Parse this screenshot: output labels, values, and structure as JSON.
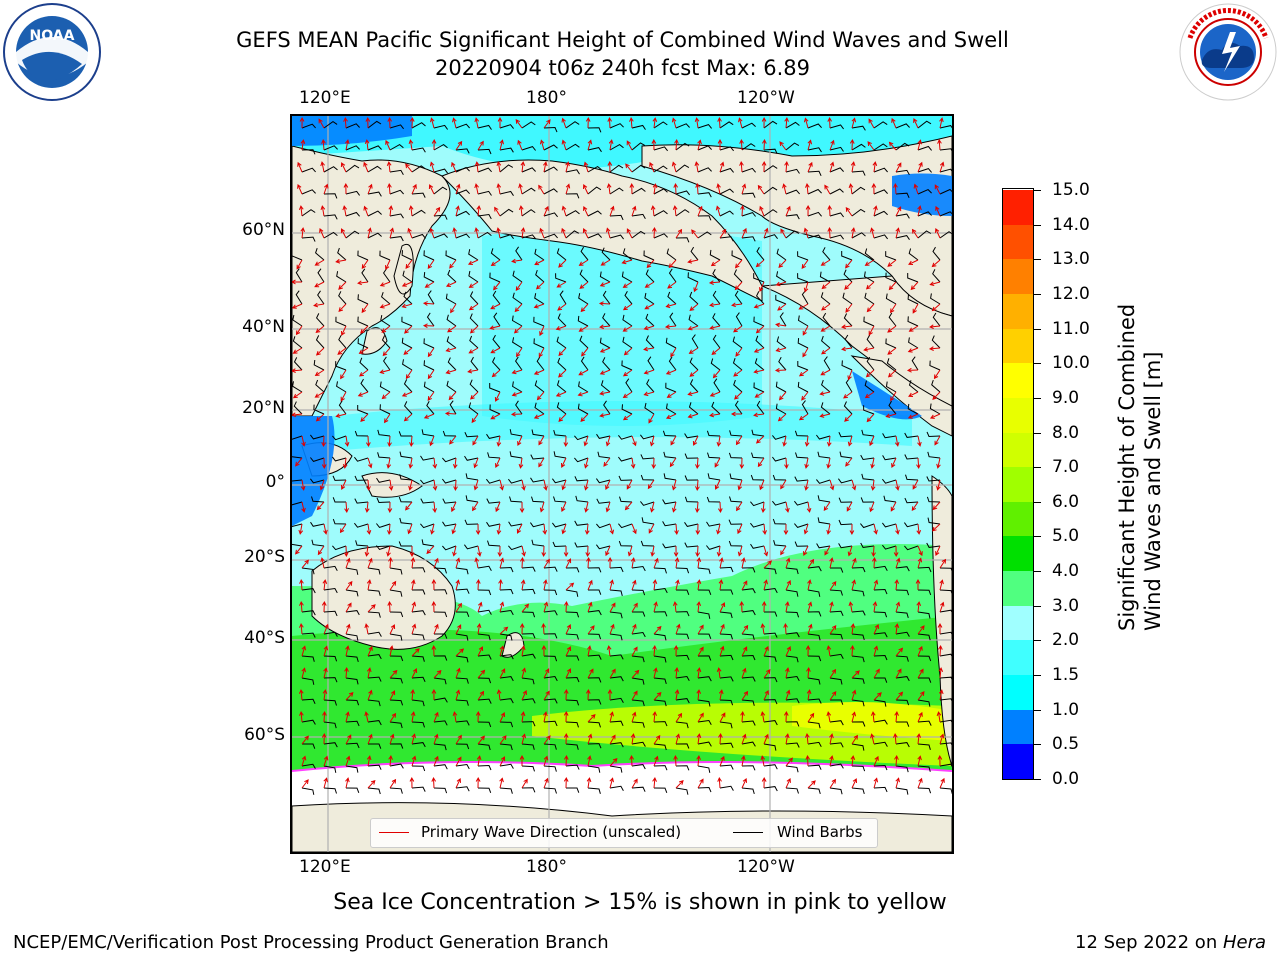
{
  "header": {
    "title_line1": "GEFS MEAN Pacific Significant Height of Combined Wind Waves and Swell",
    "title_line2": "20220904 t06z 240h fcst   Max: 6.89"
  },
  "logos": {
    "left": "NOAA",
    "left_ring_text": "NATIONAL OCEANIC AND ATMOSPHERIC ADMINISTRATION U.S. DEPARTMENT OF COMMERCE",
    "right_ring_text": "NATIONAL WEATHER SERVICE"
  },
  "axes": {
    "top_lon_ticks": [
      "120°E",
      "180°",
      "120°W"
    ],
    "bottom_lon_ticks": [
      "120°E",
      "180°",
      "120°W"
    ],
    "lat_ticks": [
      "60°N",
      "40°N",
      "20°N",
      "0°",
      "20°S",
      "40°S",
      "60°S"
    ]
  },
  "legend": {
    "wave_direction": "Primary Wave Direction (unscaled)",
    "wind_barbs": "Wind Barbs"
  },
  "colorbar": {
    "title_line1": "Significant Height of Combined",
    "title_line2": "Wind Waves and Swell [m]",
    "tick_labels": [
      "15.0",
      "14.0",
      "13.0",
      "12.0",
      "11.0",
      "10.0",
      "9.0",
      "8.0",
      "7.0",
      "6.0",
      "5.0",
      "4.0",
      "3.0",
      "2.0",
      "1.5",
      "1.0",
      "0.5",
      "0.0"
    ],
    "colors_bottom_to_top": [
      "#0000ff",
      "#0080ff",
      "#00ffff",
      "#40ffff",
      "#a0ffff",
      "#50ff80",
      "#00e000",
      "#60f000",
      "#a0ff00",
      "#d0ff00",
      "#e8ff00",
      "#ffff00",
      "#ffd000",
      "#ffb000",
      "#ff8000",
      "#ff5000",
      "#ff2000"
    ]
  },
  "map_colors": {
    "land": "#efecdc",
    "ice_free": "#ffffff",
    "wave_light": "#9ffcfc",
    "wave_cyan": "#40f8ff",
    "wave_green": "#50ff80",
    "wave_bright_green": "#30e830",
    "wave_yellow_green": "#c8ff00",
    "coast_blue": "#0080ff"
  },
  "notes": {
    "sea_ice": "Sea Ice Concentration > 15% is shown in pink to yellow"
  },
  "footer": {
    "left": "NCEP/EMC/Verification Post Processing Product Generation Branch",
    "right_date": "12 Sep 2022 on ",
    "right_machine": "Hera"
  }
}
